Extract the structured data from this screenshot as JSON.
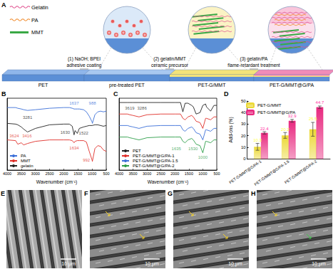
{
  "panel_a": {
    "label": "A",
    "legend": [
      "Gelatin",
      "PA",
      "MMT"
    ],
    "stages": [
      "PET",
      "pre-treated PET",
      "PET-G/MMT",
      "PET-G/MMT@G/PA"
    ],
    "steps": [
      [
        "(1) NaOH; BPEI",
        "adhesive coating"
      ],
      [
        "(2) gelatin/MMT",
        "ceramic precursor"
      ],
      [
        "(3) gelatin/PA",
        "flame-retardant treatment"
      ]
    ]
  },
  "chart_data": [
    {
      "label": "B",
      "type": "line",
      "x_label": "Wavenumber (cm⁻¹)",
      "x": [
        4000,
        3700,
        3624,
        3500,
        3416,
        3281,
        3000,
        2500,
        2000,
        1800,
        1700,
        1637,
        1600,
        1522,
        1450,
        1300,
        1200,
        1100,
        1000,
        990,
        900,
        800,
        700,
        600,
        500
      ],
      "xlim": [
        4000,
        500
      ],
      "xticks": [
        4000,
        3500,
        3000,
        2500,
        2000,
        1500,
        1000,
        500
      ],
      "ylim": [
        0,
        100
      ],
      "tick_labels": "x",
      "grid": false,
      "legend": "lower left",
      "series": [
        {
          "name": "PA",
          "color": "#3b6fd8",
          "values": [
            87,
            87,
            86,
            85,
            84,
            83,
            84,
            86,
            87,
            87,
            86,
            85,
            85,
            85,
            85,
            84,
            81,
            75,
            67,
            65,
            77,
            81,
            82,
            81,
            82
          ]
        },
        {
          "name": "MMT",
          "color": "#e0302a",
          "values": [
            42,
            41,
            36,
            38,
            35,
            37,
            40,
            42,
            42,
            42,
            41,
            38,
            40,
            41,
            41,
            41,
            39,
            26,
            14,
            12,
            30,
            34,
            33,
            28,
            26
          ]
        },
        {
          "name": "gelatin",
          "color": "#222222",
          "values": [
            65,
            64,
            63,
            60,
            57,
            53,
            58,
            63,
            64,
            64,
            61,
            49,
            55,
            51,
            58,
            60,
            61,
            62,
            62,
            62,
            63,
            63,
            62,
            61,
            62
          ]
        }
      ],
      "annotations": [
        {
          "text": "3624",
          "x": 3750,
          "y": 48,
          "series": "MMT"
        },
        {
          "text": "3416",
          "x": 3300,
          "y": 48,
          "series": "MMT"
        },
        {
          "text": "3281",
          "x": 3281,
          "y": 73,
          "series": "gelatin"
        },
        {
          "text": "1637",
          "x": 1637,
          "y": 93,
          "series": "PA"
        },
        {
          "text": "988",
          "x": 988,
          "y": 93,
          "series": "PA"
        },
        {
          "text": "1630",
          "x": 1950,
          "y": 52,
          "series": "gelatin"
        },
        {
          "text": "1522",
          "x": 1300,
          "y": 51,
          "series": "gelatin"
        },
        {
          "text": "1634",
          "x": 1634,
          "y": 31,
          "series": "MMT"
        },
        {
          "text": "992",
          "x": 1200,
          "y": 14,
          "series": "MMT"
        }
      ]
    },
    {
      "label": "C",
      "type": "line",
      "x_label": "Wavenumber (cm⁻¹)",
      "x": [
        4000,
        3700,
        3619,
        3500,
        3286,
        3000,
        2500,
        2000,
        1800,
        1715,
        1635,
        1530,
        1400,
        1340,
        1240,
        1100,
        1000,
        900,
        870,
        720,
        600,
        500
      ],
      "xlim": [
        4000,
        500
      ],
      "xticks": [
        4000,
        3500,
        3000,
        2500,
        2000,
        1500,
        1000,
        500
      ],
      "ylim": [
        0,
        100
      ],
      "tick_labels": "x",
      "grid": false,
      "legend": "lower left",
      "series": [
        {
          "name": "PET",
          "color": "#222222",
          "values": [
            94,
            94,
            94,
            94,
            94,
            94,
            94,
            94,
            94,
            81,
            93,
            93,
            90,
            88,
            78,
            80,
            90,
            92,
            88,
            82,
            90,
            90
          ]
        },
        {
          "name": "PET-G/MMT@G/PA-1",
          "color": "#e0302a",
          "values": [
            78,
            78,
            77,
            76,
            74,
            77,
            78,
            78,
            78,
            72,
            70,
            74,
            76,
            74,
            68,
            66,
            58,
            72,
            72,
            70,
            74,
            74
          ]
        },
        {
          "name": "PET-G/MMT@G/PA-1.5",
          "color": "#3b6fd8",
          "values": [
            62,
            62,
            61,
            60,
            58,
            61,
            62,
            62,
            62,
            56,
            54,
            58,
            60,
            58,
            52,
            50,
            42,
            56,
            56,
            54,
            58,
            58
          ]
        },
        {
          "name": "PET-G/MMT@G/PA-2",
          "color": "#2e9e4a",
          "values": [
            46,
            46,
            45,
            44,
            42,
            45,
            46,
            46,
            46,
            40,
            38,
            42,
            44,
            42,
            36,
            34,
            24,
            40,
            40,
            38,
            42,
            42
          ]
        }
      ],
      "annotations": [
        {
          "text": "3619",
          "x": 3619,
          "y": 86,
          "series": "PET"
        },
        {
          "text": "3286",
          "x": 3180,
          "y": 86,
          "series": "PET"
        },
        {
          "text": "1635",
          "x": 1950,
          "y": 30,
          "series": "PET-G/MMT@G/PA-2"
        },
        {
          "text": "1530",
          "x": 1350,
          "y": 30,
          "series": "PET-G/MMT@G/PA-2"
        },
        {
          "text": "1000",
          "x": 1000,
          "y": 18,
          "series": "PET-G/MMT@G/PA-2"
        }
      ]
    },
    {
      "label": "D",
      "type": "bar",
      "y_label": "Add-ons (%)",
      "categories": [
        "PET-G/MMT@G/PA-1",
        "PET-G/MMT@G/PA-1.5",
        "PET-G/MMT@G/PA-2"
      ],
      "ylim": [
        0,
        50
      ],
      "yticks": [
        0,
        10,
        20,
        30,
        40,
        50
      ],
      "grid": false,
      "legend": "upper left",
      "data_labels": true,
      "series": [
        {
          "name": "PET-G/MMT",
          "color": "#ecd935",
          "values": [
            10.3,
            20.2,
            25.5
          ],
          "errors": [
            3.0,
            2.5,
            6.0
          ]
        },
        {
          "name": "PET-G/MMT@G/PA",
          "color": "#e8287f",
          "values": [
            22.4,
            32.9,
            44.7
          ],
          "errors": [
            1.0,
            1.2,
            1.0
          ]
        }
      ]
    }
  ],
  "sem_images": [
    {
      "label": "E",
      "scale_bar": "10 μm"
    },
    {
      "label": "F",
      "scale_bar": "10 μm"
    },
    {
      "label": "G",
      "scale_bar": "10 μm"
    },
    {
      "label": "H",
      "scale_bar": "10 μm"
    }
  ]
}
